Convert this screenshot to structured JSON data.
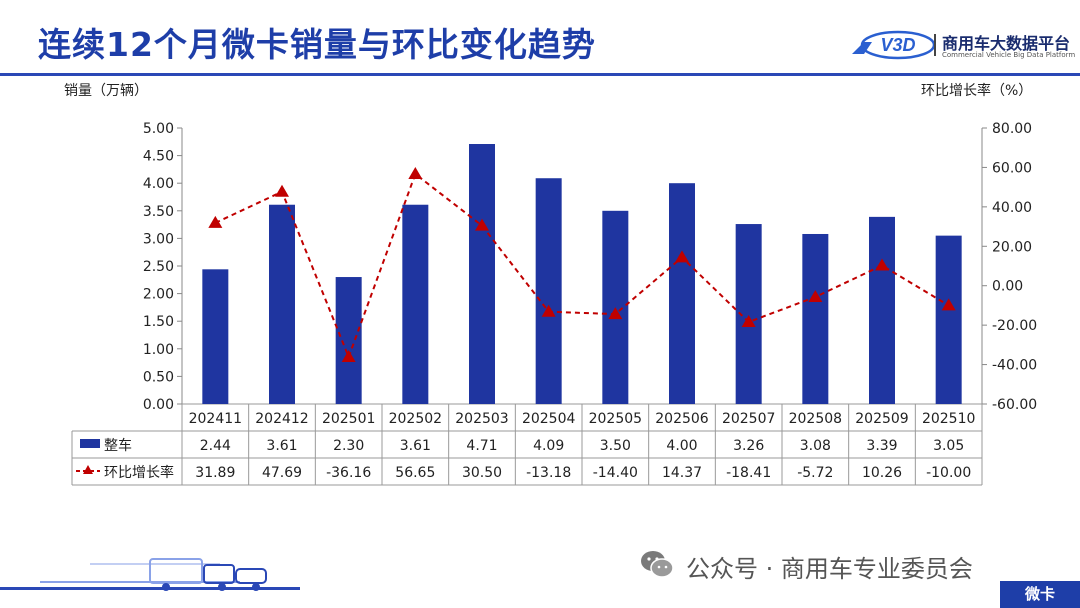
{
  "header": {
    "title": "连续12个月微卡销量与环比变化趋势",
    "logo_text": "商用车大数据平台",
    "logo_sub": "Commercial Vehicle Big Data Platform"
  },
  "footer": {
    "source_text": "公众号 · 商用车专业委员会",
    "tag": "微卡"
  },
  "colors": {
    "bar": "#1f35a0",
    "line": "#c00000",
    "accent": "#1e3ea8"
  },
  "chart_data": {
    "type": "bar",
    "categories": [
      "202411",
      "202412",
      "202501",
      "202502",
      "202503",
      "202504",
      "202505",
      "202506",
      "202507",
      "202508",
      "202509",
      "202510"
    ],
    "series": [
      {
        "name": "整车",
        "type": "bar",
        "axis": "left",
        "values": [
          2.44,
          3.61,
          2.3,
          3.61,
          4.71,
          4.09,
          3.5,
          4.0,
          3.26,
          3.08,
          3.39,
          3.05
        ],
        "labels": [
          "2.44",
          "3.61",
          "2.30",
          "3.61",
          "4.71",
          "4.09",
          "3.50",
          "4.00",
          "3.26",
          "3.08",
          "3.39",
          "3.05"
        ]
      },
      {
        "name": "环比增长率",
        "type": "line",
        "axis": "right",
        "style": "dashed",
        "marker": "triangle",
        "values": [
          31.89,
          47.69,
          -36.16,
          56.65,
          30.5,
          -13.18,
          -14.4,
          14.37,
          -18.41,
          -5.72,
          10.26,
          -10.0
        ],
        "labels": [
          "31.89",
          "47.69",
          "-36.16",
          "56.65",
          "30.50",
          "-13.18",
          "-14.40",
          "14.37",
          "-18.41",
          "-5.72",
          "10.26",
          "-10.00"
        ]
      }
    ],
    "ylabel_left": "销量（万辆）",
    "ylabel_right": "环比增长率（%）",
    "ylim_left": [
      0,
      5
    ],
    "ylim_right": [
      -60,
      80
    ],
    "yticks_left": [
      "5.00",
      "4.50",
      "4.00",
      "3.50",
      "3.00",
      "2.50",
      "2.00",
      "1.50",
      "1.00",
      "0.50",
      "0.00"
    ],
    "yticks_right": [
      "80.00",
      "60.00",
      "40.00",
      "20.00",
      "0.00",
      "-20.00",
      "-40.00",
      "-60.00"
    ],
    "grid": false,
    "legend": "data-table"
  }
}
